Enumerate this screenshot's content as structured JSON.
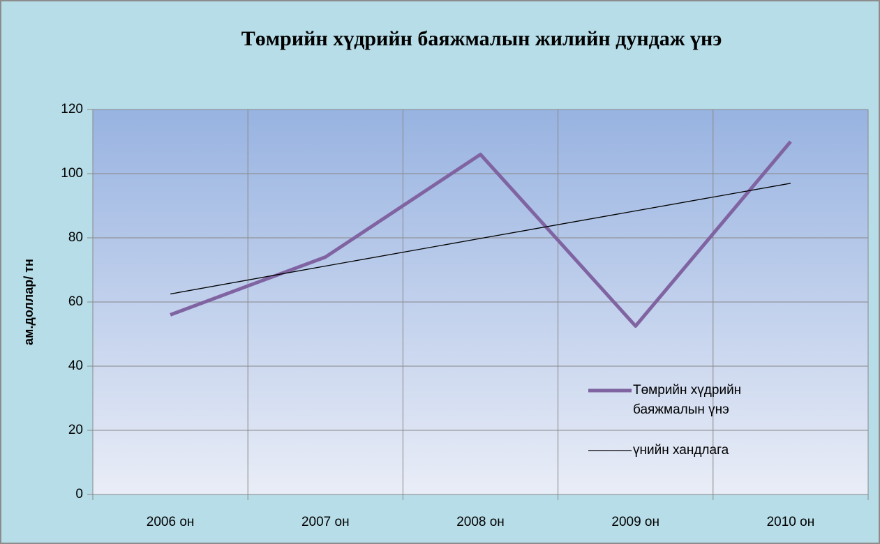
{
  "chart_data": {
    "type": "line",
    "title": "Төмрийн хүдрийн баяжмалын жилийн дундаж үнэ",
    "y_label": "ам.доллар/ тн",
    "categories": [
      "2006 он",
      "2007 он",
      "2008 он",
      "2009 он",
      "2010 он"
    ],
    "series": [
      {
        "name": "Төмрийн хүдрийн баяжмалын үнэ",
        "color": "#8064a2",
        "values": [
          56,
          74,
          106,
          52.5,
          110
        ]
      },
      {
        "name": "үнийн хандлага",
        "color": "#000000",
        "values": [
          62.5,
          71.2,
          79.8,
          88.4,
          97
        ]
      }
    ],
    "ylim": [
      0,
      120
    ],
    "yticks": [
      0,
      20,
      40,
      60,
      80,
      100,
      120
    ],
    "grid": true,
    "legend": "right"
  }
}
